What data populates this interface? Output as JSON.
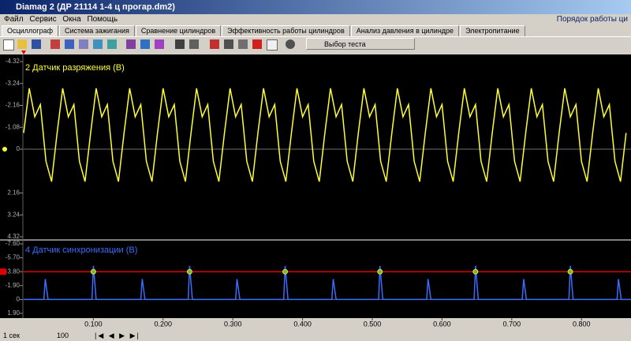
{
  "window": {
    "title": "Diamag 2 (ДР 21114 1-4 ц прогар.dm2)",
    "menu": [
      "Файл",
      "Сервис",
      "Окна",
      "Помощь"
    ],
    "menu_right": "Порядок работы ци"
  },
  "tabs": [
    "Осциллограф",
    "Система зажигания",
    "Сравнение цилиндров",
    "Эффективность работы цилиндров",
    "Анализ давления в цилиндре",
    "Электропитание"
  ],
  "toolbar": {
    "test_select": "Выбор теста"
  },
  "chart_data": [
    {
      "type": "line",
      "title": "2 Датчик разряжения (В)",
      "xlim": [
        0,
        0.871
      ],
      "ylim": [
        -4.32,
        4.32
      ],
      "yticks": [
        -4.32,
        -3.24,
        -2.16,
        -1.08,
        0,
        2.16,
        3.24,
        4.32
      ],
      "x": [
        0,
        0.008,
        0.016,
        0.024,
        0.032,
        0.04,
        0.048,
        0.056,
        0.064,
        0.072,
        0.08,
        0.088,
        0.096,
        0.104,
        0.112,
        0.12,
        0.128,
        0.136,
        0.144,
        0.152,
        0.16,
        0.168,
        0.176,
        0.184,
        0.192,
        0.2,
        0.208,
        0.216,
        0.224,
        0.232,
        0.24,
        0.248,
        0.256,
        0.264,
        0.272,
        0.28,
        0.288,
        0.296,
        0.304,
        0.312,
        0.32,
        0.328,
        0.336,
        0.344,
        0.352,
        0.36,
        0.368,
        0.376,
        0.384,
        0.392,
        0.4,
        0.408,
        0.416,
        0.424,
        0.432,
        0.44,
        0.448,
        0.456,
        0.464,
        0.472,
        0.48,
        0.488,
        0.496,
        0.504,
        0.512,
        0.52,
        0.528,
        0.536,
        0.544,
        0.552,
        0.56,
        0.568,
        0.576,
        0.584,
        0.592,
        0.6,
        0.608,
        0.616,
        0.624,
        0.632,
        0.64,
        0.648,
        0.656,
        0.664,
        0.672,
        0.68,
        0.688,
        0.696,
        0.704,
        0.712,
        0.72,
        0.728,
        0.736,
        0.744,
        0.752,
        0.76,
        0.768,
        0.776,
        0.784,
        0.792,
        0.8,
        0.808,
        0.816,
        0.824,
        0.832,
        0.84,
        0.848,
        0.856,
        0.864
      ],
      "series": [
        {
          "color": "#ffff33",
          "values": [
            -0.8,
            -3.0,
            -1.6,
            -2.2,
            0.6,
            1.6,
            -0.8,
            -3.0,
            -1.6,
            -2.2,
            0.6,
            1.6,
            -0.8,
            -3.0,
            -1.6,
            -2.2,
            0.6,
            1.6,
            -0.8,
            -3.0,
            -1.6,
            -2.2,
            0.6,
            1.6,
            -0.8,
            -3.0,
            -1.6,
            -2.2,
            0.6,
            1.6,
            -0.8,
            -3.0,
            -1.6,
            -2.2,
            0.6,
            1.6,
            -0.8,
            -3.0,
            -1.6,
            -2.2,
            0.6,
            1.6,
            -0.8,
            -3.0,
            -1.6,
            -2.2,
            0.6,
            1.6,
            -0.8,
            -3.0,
            -1.6,
            -2.2,
            0.6,
            1.6,
            -0.8,
            -3.0,
            -1.6,
            -2.2,
            0.6,
            1.6,
            -0.8,
            -3.0,
            -1.6,
            -2.2,
            0.6,
            1.6,
            -0.8,
            -3.0,
            -1.6,
            -2.2,
            0.6,
            1.6,
            -0.8,
            -3.0,
            -1.6,
            -2.2,
            0.6,
            1.6,
            -0.8,
            -3.0,
            -1.6,
            -2.2,
            0.6,
            1.6,
            -0.8,
            -3.0,
            -1.6,
            -2.2,
            0.6,
            1.6,
            -0.8,
            -3.0,
            -1.6,
            -2.2,
            0.6,
            1.6,
            -0.8,
            -3.0,
            -1.6,
            -2.2,
            0.6,
            1.6,
            -0.8,
            -3.0,
            -1.6,
            -2.2,
            0.6,
            1.6,
            -0.8
          ]
        }
      ]
    },
    {
      "type": "line",
      "title": "4 Датчик синхронизации (В)",
      "xlim": [
        0,
        0.871
      ],
      "ylim": [
        -7.6,
        1.9
      ],
      "yticks": [
        {
          "value": -7.6,
          "label": "-7.60"
        },
        {
          "value": -5.7,
          "label": "-5.70"
        },
        {
          "value": -3.8,
          "label": "-3.80"
        },
        {
          "value": -1.9,
          "label": "-1.90"
        },
        0,
        {
          "value": 1.9,
          "label": "1.90"
        }
      ],
      "threshold": -3.8,
      "threshold_color": "#e00000",
      "xticks": [
        {
          "value": 0.1,
          "label": "0.100"
        },
        {
          "value": 0.2,
          "label": "0.200"
        },
        {
          "value": 0.3,
          "label": "0.300"
        },
        {
          "value": 0.4,
          "label": "0.400"
        },
        {
          "value": 0.5,
          "label": "0.500"
        },
        {
          "value": 0.6,
          "label": "0.600"
        },
        {
          "value": 0.7,
          "label": "0.700"
        },
        {
          "value": 0.8,
          "label": "0.800"
        }
      ],
      "x": [
        0,
        0.029,
        0.031,
        0.035,
        0.098,
        0.1,
        0.104,
        0.168,
        0.17,
        0.174,
        0.236,
        0.238,
        0.242,
        0.304,
        0.306,
        0.31,
        0.373,
        0.375,
        0.379,
        0.442,
        0.444,
        0.448,
        0.509,
        0.511,
        0.515,
        0.578,
        0.58,
        0.584,
        0.646,
        0.648,
        0.652,
        0.715,
        0.717,
        0.721,
        0.782,
        0.784,
        0.788,
        0.851,
        0.853,
        0.857,
        0.871
      ],
      "series": [
        {
          "color": "#3a6cff",
          "values": [
            0,
            0,
            -2.8,
            0,
            0,
            -4.6,
            0,
            0,
            -2.8,
            0,
            0,
            -4.6,
            0,
            0,
            -2.8,
            0,
            0,
            -4.6,
            0,
            0,
            -2.8,
            0,
            0,
            -4.6,
            0,
            0,
            -2.8,
            0,
            0,
            -4.6,
            0,
            0,
            -2.8,
            0,
            0,
            -4.6,
            0,
            0,
            -2.8,
            0,
            0
          ]
        }
      ]
    }
  ],
  "status": {
    "time_scale": "1 сек",
    "zoom": "100"
  }
}
